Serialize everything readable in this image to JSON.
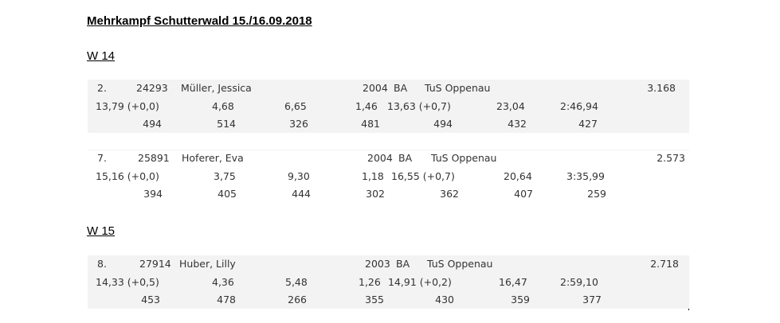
{
  "title": "Mehrkampf Schutterwald 15./16.09.2018",
  "sections": [
    {
      "heading": "W 14",
      "entries": [
        {
          "rank": "2.",
          "id": "24293",
          "name": "Müller, Jessica",
          "year": "2004",
          "region": "BA",
          "club": "TuS Oppenau",
          "total": "3.168",
          "performances": [
            "13,79 (+0,0)",
            "4,68",
            "6,65",
            "1,46",
            "13,63 (+0,7)",
            "23,04",
            "2:46,94"
          ],
          "points": [
            "494",
            "514",
            "326",
            "481",
            "494",
            "432",
            "427"
          ]
        },
        {
          "rank": "7.",
          "id": "25891",
          "name": "Hoferer, Eva",
          "year": "2004",
          "region": "BA",
          "club": "TuS Oppenau",
          "total": "2.573",
          "performances": [
            "15,16 (+0,0)",
            "3,75",
            "9,30",
            "1,18",
            "16,55 (+0,7)",
            "20,64",
            "3:35,99"
          ],
          "points": [
            "394",
            "405",
            "444",
            "302",
            "362",
            "407",
            "259"
          ]
        }
      ]
    },
    {
      "heading": "W 15",
      "entries": [
        {
          "rank": "8.",
          "id": "27914",
          "name": "Huber, Lilly",
          "year": "2003",
          "region": "BA",
          "club": "TuS Oppenau",
          "total": "2.718",
          "performances": [
            "14,33 (+0,5)",
            "4,36",
            "5,48",
            "1,26",
            "14,91 (+0,2)",
            "16,47",
            "2:59,10"
          ],
          "points": [
            "453",
            "478",
            "266",
            "355",
            "430",
            "359",
            "377"
          ]
        }
      ]
    }
  ]
}
